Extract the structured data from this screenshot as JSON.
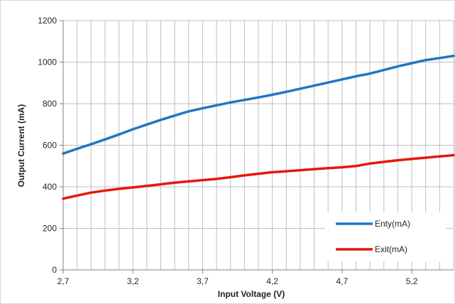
{
  "chart_data": {
    "type": "line",
    "title": "",
    "xlabel": "Input Voltage (V)",
    "ylabel": "Output Current (mA)",
    "xlim": [
      2.7,
      5.5
    ],
    "ylim": [
      0,
      1200
    ],
    "x_ticks": [
      "2,7",
      "3,2",
      "3,7",
      "4,2",
      "4,7",
      "5,2"
    ],
    "y_ticks": [
      "0",
      "200",
      "400",
      "600",
      "800",
      "1000",
      "1200"
    ],
    "grid": true,
    "legend_position": "bottom-right",
    "series": [
      {
        "name": "Enty(mA)",
        "color": "#1f77c4",
        "x": [
          2.7,
          2.8,
          2.9,
          3.0,
          3.1,
          3.2,
          3.3,
          3.4,
          3.5,
          3.6,
          3.7,
          3.8,
          3.9,
          4.0,
          4.1,
          4.2,
          4.3,
          4.4,
          4.5,
          4.6,
          4.7,
          4.8,
          4.9,
          5.0,
          5.1,
          5.2,
          5.3,
          5.4,
          5.5
        ],
        "values": [
          560,
          583,
          605,
          628,
          652,
          677,
          700,
          722,
          743,
          763,
          778,
          792,
          806,
          818,
          830,
          843,
          857,
          872,
          887,
          902,
          917,
          932,
          945,
          962,
          980,
          995,
          1010,
          1020,
          1030
        ]
      },
      {
        "name": "Exit(mA)",
        "color": "#e8160c",
        "x": [
          2.7,
          2.8,
          2.9,
          3.0,
          3.1,
          3.2,
          3.3,
          3.4,
          3.5,
          3.6,
          3.7,
          3.8,
          3.9,
          4.0,
          4.1,
          4.2,
          4.3,
          4.4,
          4.5,
          4.6,
          4.7,
          4.8,
          4.9,
          5.0,
          5.1,
          5.2,
          5.3,
          5.4,
          5.5
        ],
        "values": [
          343,
          358,
          372,
          382,
          390,
          397,
          404,
          412,
          420,
          426,
          432,
          438,
          446,
          455,
          463,
          470,
          475,
          480,
          485,
          490,
          494,
          500,
          512,
          520,
          528,
          534,
          540,
          546,
          552
        ]
      }
    ]
  }
}
